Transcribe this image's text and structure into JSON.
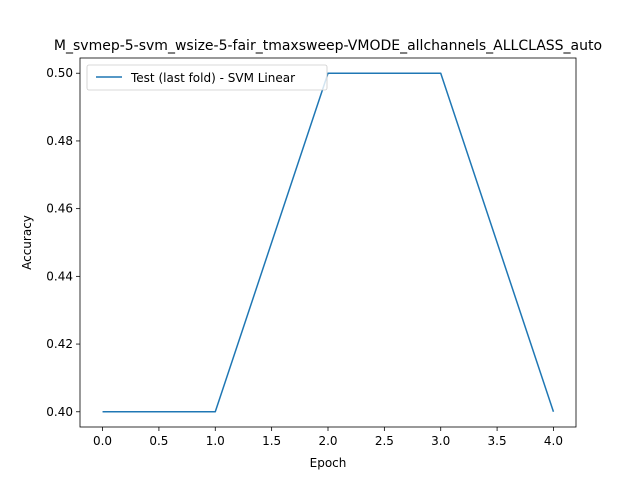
{
  "chart_data": {
    "type": "line",
    "title": "M_svmep-5-svm_wsize-5-fair_tmaxsweep-VMODE_allchannels_ALLCLASS_auto",
    "xlabel": "Epoch",
    "ylabel": "Accuracy",
    "xlim": [
      -0.2,
      4.2
    ],
    "ylim": [
      0.3955,
      0.5045
    ],
    "xticks": [
      0.0,
      0.5,
      1.0,
      1.5,
      2.0,
      2.5,
      3.0,
      3.5,
      4.0
    ],
    "xtick_labels": [
      "0.0",
      "0.5",
      "1.0",
      "1.5",
      "2.0",
      "2.5",
      "3.0",
      "3.5",
      "4.0"
    ],
    "yticks": [
      0.4,
      0.42,
      0.44,
      0.46,
      0.48,
      0.5
    ],
    "ytick_labels": [
      "0.40",
      "0.42",
      "0.44",
      "0.46",
      "0.48",
      "0.50"
    ],
    "grid": false,
    "legend": "upper-left",
    "series": [
      {
        "name": "Test (last fold) - SVM Linear",
        "color": "#1f77b4",
        "x": [
          0,
          1,
          2,
          3,
          4
        ],
        "values": [
          0.4,
          0.4,
          0.5,
          0.5,
          0.4
        ]
      }
    ]
  }
}
